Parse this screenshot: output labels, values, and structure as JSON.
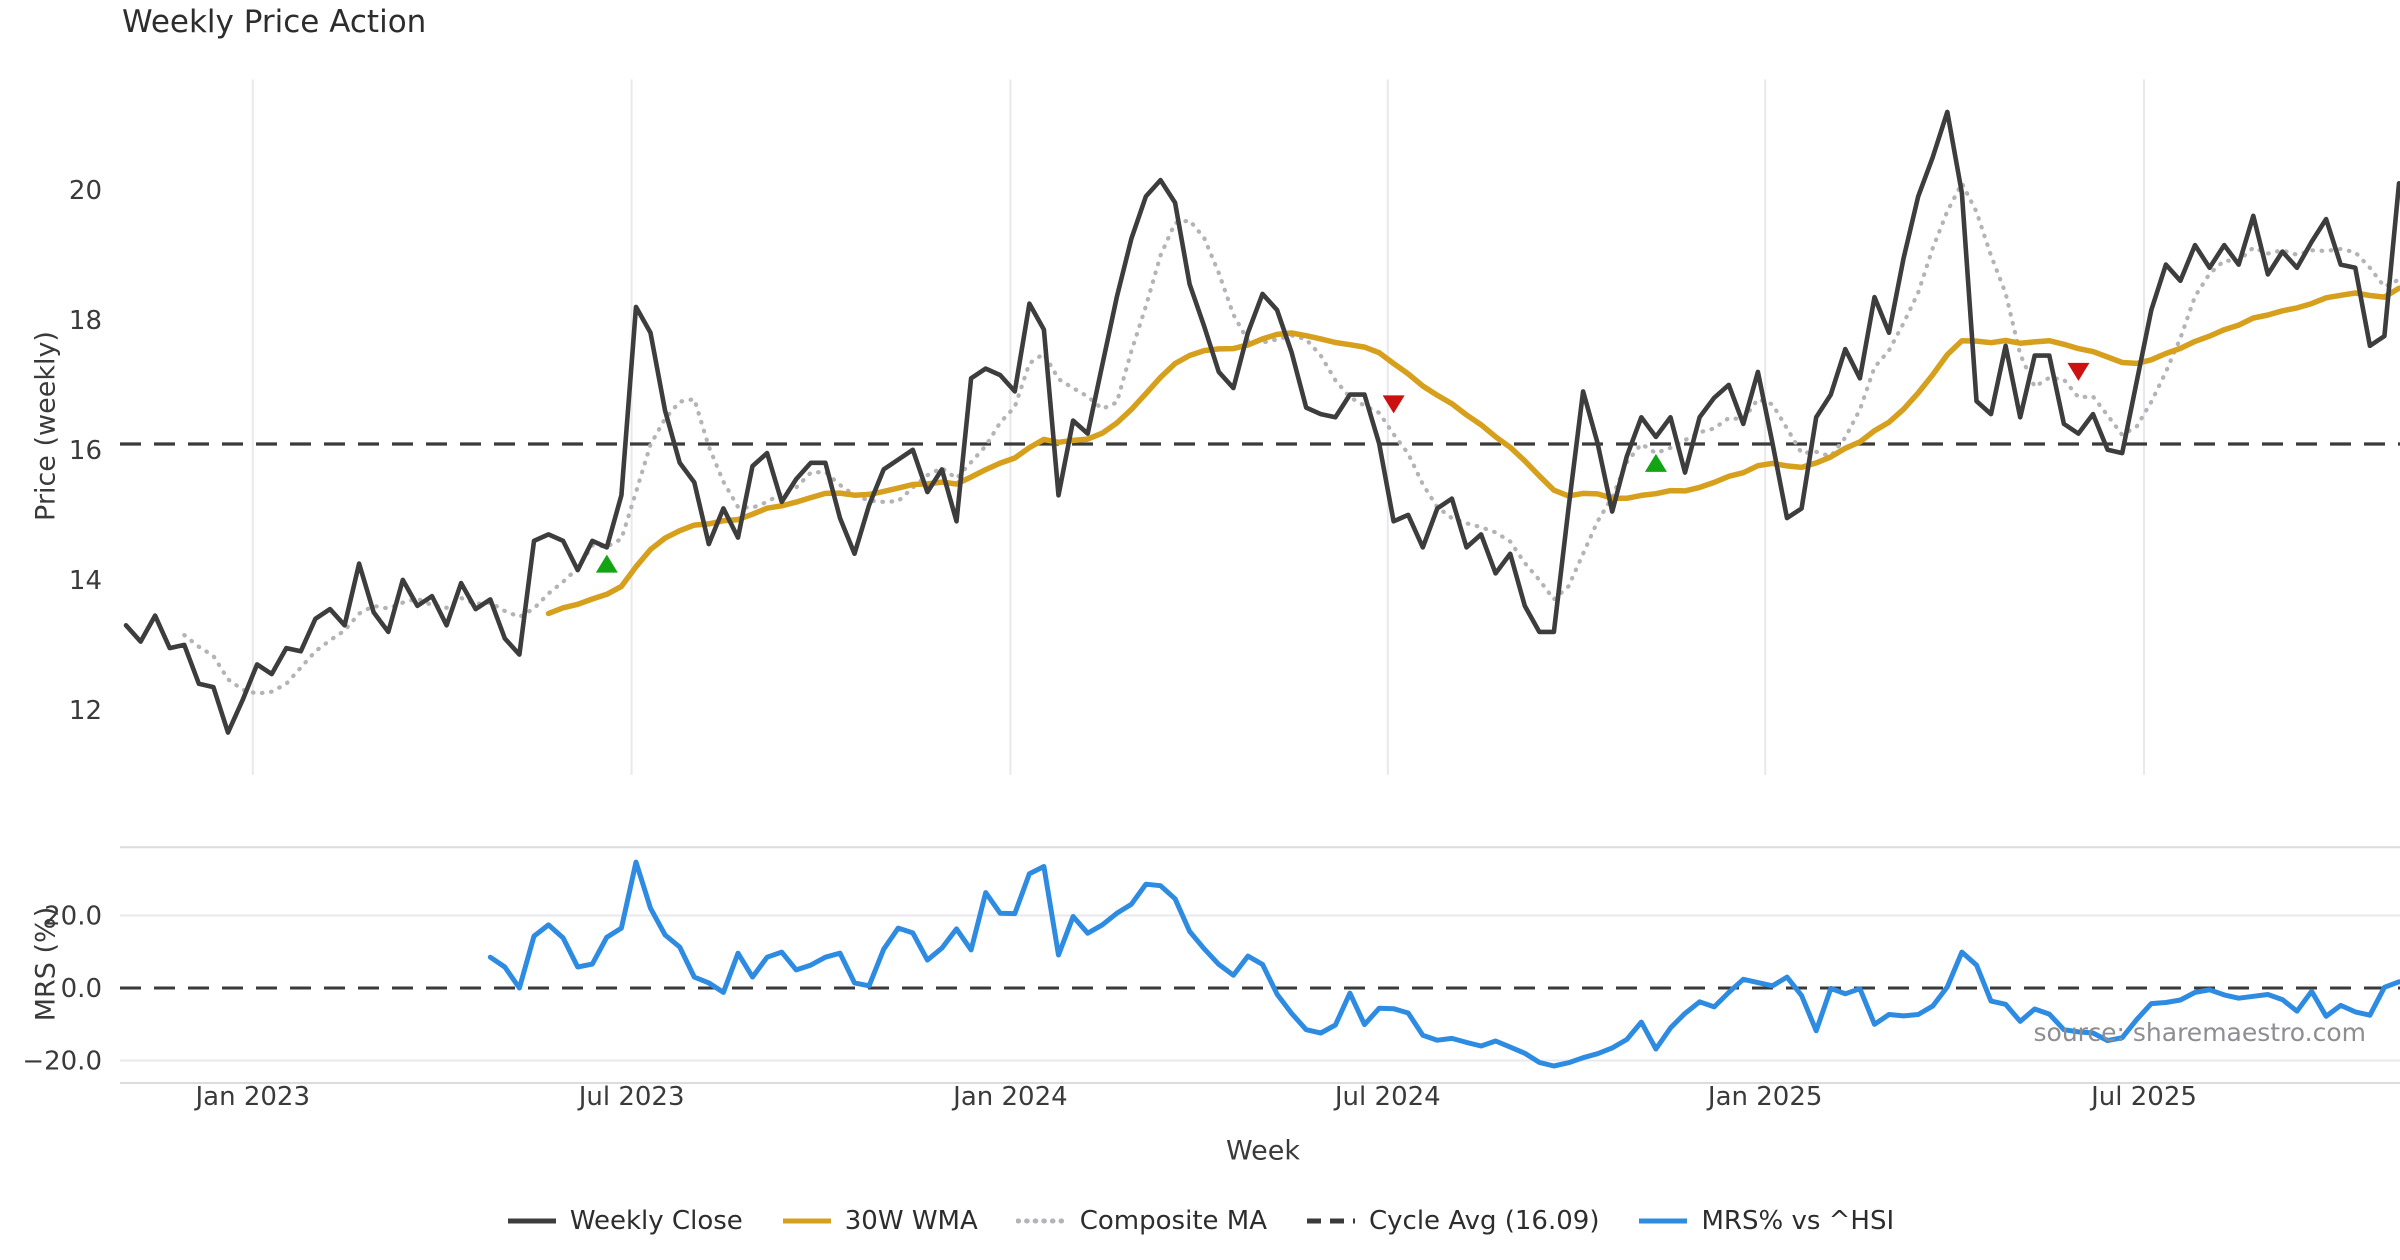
{
  "title": "Weekly Price Action",
  "xlabel": "Week",
  "source": "source: sharemaestro.com",
  "colors": {
    "close": "#3d3d3d",
    "wma": "#d6a01d",
    "composite": "#b3b3b8",
    "cycle": "#3a3a3a",
    "mrs": "#2e8be2",
    "buy": "#12a412",
    "sell": "#cc1111",
    "gridline": "#e9e9ec",
    "panel_border": "#dcdce0",
    "tick_text": "#3a3a3a"
  },
  "legend": [
    {
      "label": "Weekly Close",
      "color": "#3d3d3d",
      "style": "solid"
    },
    {
      "label": "30W WMA",
      "color": "#d6a01d",
      "style": "solid"
    },
    {
      "label": "Composite MA",
      "color": "#b3b3b8",
      "style": "dotted"
    },
    {
      "label": "Cycle Avg (16.09)",
      "color": "#3a3a3a",
      "style": "dashed"
    },
    {
      "label": "MRS% vs ^HSI",
      "color": "#2e8be2",
      "style": "solid"
    }
  ],
  "chart_data": [
    {
      "type": "line",
      "panel": "price",
      "title": "Weekly Price Action",
      "ylabel": "Price (weekly)",
      "xlabel": "Week",
      "ylim": [
        11.0,
        21.7
      ],
      "yticks": [
        12,
        14,
        16,
        18,
        20
      ],
      "grid": "vertical-only",
      "x_unit": "week_index",
      "x_range": [
        0,
        156
      ],
      "x_ticks": [
        {
          "week": 8.7,
          "label": "Jan 2023"
        },
        {
          "week": 34.7,
          "label": "Jul 2023"
        },
        {
          "week": 60.7,
          "label": "Jan 2024"
        },
        {
          "week": 86.6,
          "label": "Jul 2024"
        },
        {
          "week": 112.5,
          "label": "Jan 2025"
        },
        {
          "week": 138.5,
          "label": "Jul 2025"
        }
      ],
      "cycle_avg": 16.09,
      "series": [
        {
          "name": "Weekly Close",
          "style": "solid",
          "start_week": 0,
          "values": [
            13.3,
            13.05,
            13.45,
            12.95,
            13.0,
            12.4,
            12.35,
            11.65,
            12.15,
            12.7,
            12.55,
            12.95,
            12.9,
            13.4,
            13.55,
            13.3,
            14.25,
            13.5,
            13.2,
            14.0,
            13.6,
            13.75,
            13.3,
            13.95,
            13.55,
            13.7,
            13.1,
            12.85,
            14.6,
            14.7,
            14.6,
            14.15,
            14.6,
            14.5,
            15.3,
            18.2,
            17.8,
            16.6,
            15.8,
            15.5,
            14.55,
            15.1,
            14.65,
            15.75,
            15.95,
            15.2,
            15.55,
            15.8,
            15.8,
            14.95,
            14.4,
            15.15,
            15.7,
            15.85,
            16.0,
            15.35,
            15.7,
            14.9,
            17.1,
            17.25,
            17.15,
            16.9,
            18.25,
            17.85,
            15.3,
            16.45,
            16.25,
            17.3,
            18.35,
            19.25,
            19.9,
            20.15,
            19.8,
            18.55,
            17.9,
            17.2,
            16.95,
            17.8,
            18.4,
            18.15,
            17.5,
            16.65,
            16.55,
            16.5,
            16.85,
            16.85,
            16.1,
            14.9,
            15.0,
            14.5,
            15.1,
            15.25,
            14.5,
            14.7,
            14.1,
            14.4,
            13.6,
            13.2,
            13.2,
            15.1,
            16.9,
            16.1,
            15.05,
            15.9,
            16.5,
            16.2,
            16.5,
            15.65,
            16.5,
            16.8,
            17.0,
            16.4,
            17.2,
            16.1,
            14.95,
            15.1,
            16.5,
            16.85,
            17.55,
            17.1,
            18.35,
            17.8,
            18.95,
            19.9,
            20.5,
            21.2,
            19.95,
            16.75,
            16.55,
            17.6,
            16.5,
            17.45,
            17.45,
            16.4,
            16.25,
            16.55,
            16.0,
            15.95,
            17.05,
            18.15,
            18.85,
            18.6,
            19.15,
            18.8,
            19.15,
            18.85,
            19.6,
            18.7,
            19.05,
            18.8,
            19.2,
            19.55,
            18.85,
            18.8,
            17.6,
            17.75,
            20.1
          ]
        },
        {
          "name": "30W WMA",
          "style": "solid",
          "start_week": 29,
          "derived_from": "Weekly Close",
          "derivation": "30-week linearly weighted moving average"
        },
        {
          "name": "Composite MA",
          "style": "dotted",
          "start_week": 4,
          "derived_from": "Weekly Close",
          "derivation": "5-week simple moving average"
        },
        {
          "name": "Cycle Avg (16.09)",
          "style": "dashed",
          "constant": 16.09
        }
      ],
      "markers": {
        "buy": [
          {
            "week": 33,
            "price": 14.25
          },
          {
            "week": 105,
            "price": 15.8
          }
        ],
        "sell": [
          {
            "week": 87,
            "price": 16.7
          },
          {
            "week": 134,
            "price": 17.2
          }
        ]
      }
    },
    {
      "type": "line",
      "panel": "mrs",
      "ylabel": "MRS (%)",
      "ylim": [
        -26.2,
        38.8
      ],
      "yticks": [
        -20.0,
        0.0,
        20.0
      ],
      "ytick_labels": [
        "−20.0",
        "0.0",
        "20.0"
      ],
      "zero_line": 0,
      "series": [
        {
          "name": "MRS% vs ^HSI",
          "style": "solid",
          "start_week": 25,
          "values": [
            8.5,
            5.8,
            0.0,
            14.3,
            17.4,
            13.8,
            5.8,
            6.6,
            14.0,
            16.5,
            34.7,
            22.0,
            14.6,
            11.3,
            3.0,
            1.4,
            -1.2,
            9.6,
            3.0,
            8.5,
            9.9,
            5.0,
            6.3,
            8.5,
            9.6,
            1.4,
            0.6,
            10.7,
            16.5,
            15.2,
            7.7,
            11.0,
            16.3,
            10.5,
            26.3,
            20.6,
            20.5,
            31.5,
            33.5,
            9.1,
            19.7,
            15.1,
            17.4,
            20.6,
            23.1,
            28.6,
            28.2,
            24.6,
            15.6,
            10.8,
            6.5,
            3.5,
            8.8,
            6.5,
            -1.7,
            -7.0,
            -11.5,
            -12.4,
            -10.2,
            -1.4,
            -10.1,
            -5.6,
            -5.7,
            -6.9,
            -13.0,
            -14.4,
            -13.9,
            -15.0,
            -16.0,
            -14.6,
            -16.3,
            -18.0,
            -20.5,
            -21.5,
            -20.6,
            -19.2,
            -18.1,
            -16.5,
            -14.2,
            -9.4,
            -16.8,
            -11.0,
            -7.0,
            -3.8,
            -5.2,
            -1.2,
            2.4,
            1.5,
            0.6,
            3.0,
            -2.1,
            -11.8,
            -0.1,
            -1.6,
            -0.2,
            -10.0,
            -7.3,
            -7.7,
            -7.3,
            -5.0,
            0.3,
            9.9,
            6.3,
            -3.6,
            -4.5,
            -9.2,
            -5.8,
            -7.2,
            -11.5,
            -12.1,
            -12.4,
            -14.5,
            -13.7,
            -8.7,
            -4.3,
            -4.0,
            -3.3,
            -1.2,
            -0.5,
            -1.9,
            -2.8,
            -2.3,
            -1.8,
            -3.2,
            -6.4,
            -0.9,
            -7.8,
            -4.8,
            -6.6,
            -7.5,
            0.2,
            1.7
          ]
        }
      ]
    }
  ]
}
